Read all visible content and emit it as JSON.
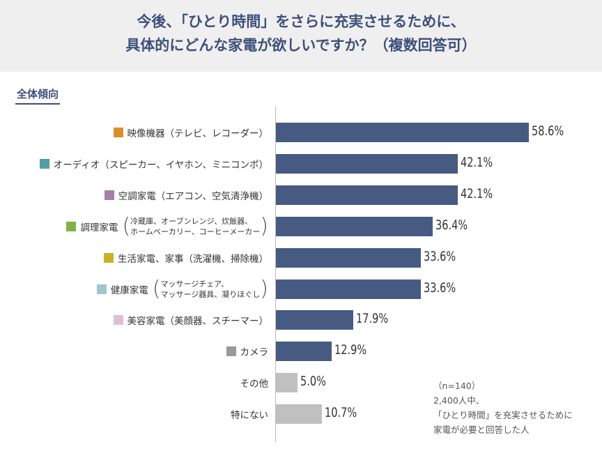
{
  "header": {
    "line1": "今後、「ひとり時間」をさらに充実させるために、",
    "line2": "具体的にどんな家電が欲しいですか？（複数回答可）"
  },
  "section_title": "全体傾向",
  "note": {
    "n": "（n=140）",
    "l1": "2,400人中、",
    "l2": "「ひとり時間」を充実させるために",
    "l3": "家電が必要と回答した人"
  },
  "chart_data": {
    "type": "bar",
    "orientation": "horizontal",
    "xlim": [
      0,
      60
    ],
    "grid": false,
    "categories": [
      "映像機器（テレビ、レコーダー）",
      "オーディオ（スピーカー、イヤホン、ミニコンポ）",
      "空調家電（エアコン、空気清浄機）",
      "調理家電",
      "生活家電、家事（洗濯機、掃除機）",
      "健康家電",
      "美容家電（美顔器、スチーマー）",
      "カメラ",
      "その他",
      "特にない"
    ],
    "sublabels": [
      null,
      null,
      null,
      [
        "冷蔵庫、オーブンレンジ、炊飯器、",
        "ホームベーカリー、コーヒーメーカー"
      ],
      null,
      [
        "マッサージチェア、",
        "マッサージ器具、凝りほぐし"
      ],
      null,
      null,
      null,
      null
    ],
    "values": [
      58.6,
      42.1,
      42.1,
      36.4,
      33.6,
      33.6,
      17.9,
      12.9,
      5.0,
      10.7
    ],
    "labels": [
      "58.6%",
      "42.1%",
      "42.1%",
      "36.4%",
      "33.6%",
      "33.6%",
      "17.9%",
      "12.9%",
      "5.0%",
      "10.7%"
    ],
    "marker_colors": [
      "#d9902a",
      "#4f9ea3",
      "#a47fa8",
      "#7fb347",
      "#c9b227",
      "#9fc7cc",
      "#d9c1d8",
      "#999999",
      null,
      null
    ],
    "bar_colors": [
      "#465a82",
      "#465a82",
      "#465a82",
      "#465a82",
      "#465a82",
      "#465a82",
      "#465a82",
      "#465a82",
      "#c0c0c0",
      "#c0c0c0"
    ]
  }
}
